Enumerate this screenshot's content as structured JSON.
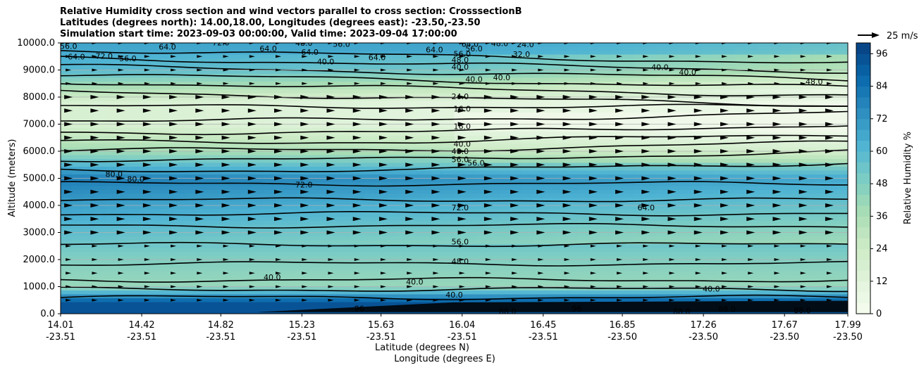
{
  "chart_data": {
    "type": "contour",
    "title_lines": [
      "Relative Humidity cross section and wind vectors parallel to cross section: CrosssectionB",
      "Latitudes (degrees north): 14.00,18.00, Longitudes (degrees east): -23.50,-23.50",
      "Simulation start time: 2023-09-03 00:00:00, Valid time: 2023-09-04 17:00:00"
    ],
    "xlabel_lat": "Latitude (degrees N)",
    "xlabel_lon": "Longitude (degrees E)",
    "ylabel": "Altitude (meters)",
    "xlim": [
      14.01,
      17.99
    ],
    "ylim": [
      0,
      10000
    ],
    "x_ticks": [
      {
        "lat": "14.01",
        "lon": "-23.51"
      },
      {
        "lat": "14.42",
        "lon": "-23.51"
      },
      {
        "lat": "14.82",
        "lon": "-23.51"
      },
      {
        "lat": "15.23",
        "lon": "-23.51"
      },
      {
        "lat": "15.63",
        "lon": "-23.51"
      },
      {
        "lat": "16.04",
        "lon": "-23.51"
      },
      {
        "lat": "16.45",
        "lon": "-23.51"
      },
      {
        "lat": "16.85",
        "lon": "-23.50"
      },
      {
        "lat": "17.26",
        "lon": "-23.50"
      },
      {
        "lat": "17.67",
        "lon": "-23.50"
      },
      {
        "lat": "17.99",
        "lon": "-23.50"
      }
    ],
    "y_ticks": [
      "0.0",
      "1000.0",
      "2000.0",
      "3000.0",
      "4000.0",
      "5000.0",
      "6000.0",
      "7000.0",
      "8000.0",
      "9000.0",
      "10000.0"
    ],
    "grid": "horizontal",
    "colorbar": {
      "label": "Relative Humidity %",
      "ticks": [
        "0",
        "12",
        "24",
        "36",
        "48",
        "60",
        "72",
        "84",
        "96"
      ],
      "range": [
        0,
        100
      ],
      "colormap": "GnBu",
      "color_low": "#f7fcf0",
      "color_high": "#084081"
    },
    "quiver_key": {
      "label": "25 m/s"
    },
    "contour_labels": [
      {
        "text": "56.0",
        "x": 14.05,
        "y": 9860
      },
      {
        "text": "64.0",
        "x": 14.09,
        "y": 9470
      },
      {
        "text": "72.0",
        "x": 14.23,
        "y": 9500
      },
      {
        "text": "56.0",
        "x": 14.35,
        "y": 9400
      },
      {
        "text": "64.0",
        "x": 14.55,
        "y": 9830
      },
      {
        "text": "72.0",
        "x": 14.82,
        "y": 9990
      },
      {
        "text": "64.0",
        "x": 15.06,
        "y": 9760
      },
      {
        "text": "48.0",
        "x": 15.24,
        "y": 9970
      },
      {
        "text": "64.0",
        "x": 15.27,
        "y": 9640
      },
      {
        "text": "40.0",
        "x": 15.35,
        "y": 9290
      },
      {
        "text": "56.0",
        "x": 15.43,
        "y": 9940
      },
      {
        "text": "64.0",
        "x": 15.61,
        "y": 9440
      },
      {
        "text": "64.0",
        "x": 15.9,
        "y": 9730
      },
      {
        "text": "56.0",
        "x": 16.04,
        "y": 9570
      },
      {
        "text": "48.0",
        "x": 16.03,
        "y": 9350
      },
      {
        "text": "40.0",
        "x": 16.03,
        "y": 9090
      },
      {
        "text": "64.0",
        "x": 16.08,
        "y": 9940
      },
      {
        "text": "56.0",
        "x": 16.1,
        "y": 9770
      },
      {
        "text": "48.0",
        "x": 16.23,
        "y": 9960
      },
      {
        "text": "24.0",
        "x": 16.36,
        "y": 9920
      },
      {
        "text": "32.0",
        "x": 16.34,
        "y": 9560
      },
      {
        "text": "40.0",
        "x": 16.1,
        "y": 8640
      },
      {
        "text": "40.0",
        "x": 16.24,
        "y": 8700
      },
      {
        "text": "24.0",
        "x": 16.03,
        "y": 8000
      },
      {
        "text": "16.0",
        "x": 16.04,
        "y": 7550
      },
      {
        "text": "16.0",
        "x": 16.04,
        "y": 6900
      },
      {
        "text": "40.0",
        "x": 17.04,
        "y": 9080
      },
      {
        "text": "40.0",
        "x": 17.18,
        "y": 8900
      },
      {
        "text": "48.0",
        "x": 17.82,
        "y": 8540
      },
      {
        "text": "40.0",
        "x": 16.04,
        "y": 6250
      },
      {
        "text": "48.0",
        "x": 16.03,
        "y": 5980
      },
      {
        "text": "56.0",
        "x": 16.03,
        "y": 5680
      },
      {
        "text": "56.0",
        "x": 16.11,
        "y": 5550
      },
      {
        "text": "80.0",
        "x": 14.28,
        "y": 5130
      },
      {
        "text": "80.0",
        "x": 14.39,
        "y": 4950
      },
      {
        "text": "72.0",
        "x": 15.24,
        "y": 4740
      },
      {
        "text": "72.0",
        "x": 16.03,
        "y": 3900
      },
      {
        "text": "64.0",
        "x": 16.97,
        "y": 3900
      },
      {
        "text": "56.0",
        "x": 16.03,
        "y": 2640
      },
      {
        "text": "48.0",
        "x": 16.03,
        "y": 1910
      },
      {
        "text": "40.0",
        "x": 15.08,
        "y": 1320
      },
      {
        "text": "40.0",
        "x": 15.8,
        "y": 1150
      },
      {
        "text": "40.0",
        "x": 16.0,
        "y": 680
      },
      {
        "text": "40.0",
        "x": 17.3,
        "y": 890
      },
      {
        "text": "88.0",
        "x": 16.27,
        "y": 70
      },
      {
        "text": "88.0",
        "x": 17.15,
        "y": 70
      },
      {
        "text": "88.0",
        "x": 17.38,
        "y": 140
      },
      {
        "text": "88.0",
        "x": 17.76,
        "y": 110
      },
      {
        "text": "96",
        "x": 15.52,
        "y": 170
      },
      {
        "text": "96",
        "x": 16.62,
        "y": 170
      }
    ]
  }
}
